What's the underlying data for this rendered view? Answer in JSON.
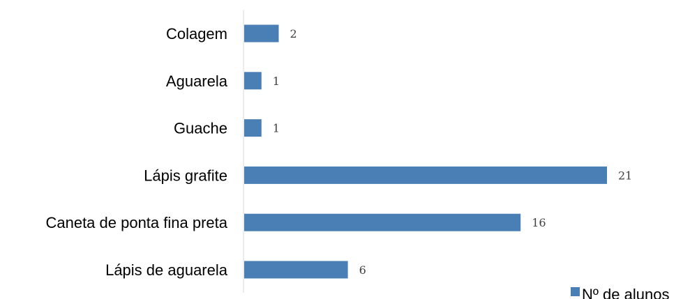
{
  "chart_data": {
    "type": "bar",
    "orientation": "horizontal",
    "categories": [
      "Colagem",
      "Aguarela",
      "Guache",
      "Lápis grafite",
      "Caneta de ponta fina preta",
      "Lápis de aguarela"
    ],
    "series": [
      {
        "name": "Nº de alunos",
        "values": [
          2,
          1,
          1,
          21,
          16,
          6
        ],
        "color": "#4a7fb5"
      }
    ],
    "xlim": [
      0,
      22
    ],
    "grid": false,
    "data_labels": true,
    "legend": {
      "position": "bottom-right",
      "label": "Nº de alunos"
    },
    "colors": {
      "bar": "#4a7fb5",
      "axis": "#d9d9d9",
      "text": "#000000",
      "value_text": "#404040"
    }
  }
}
